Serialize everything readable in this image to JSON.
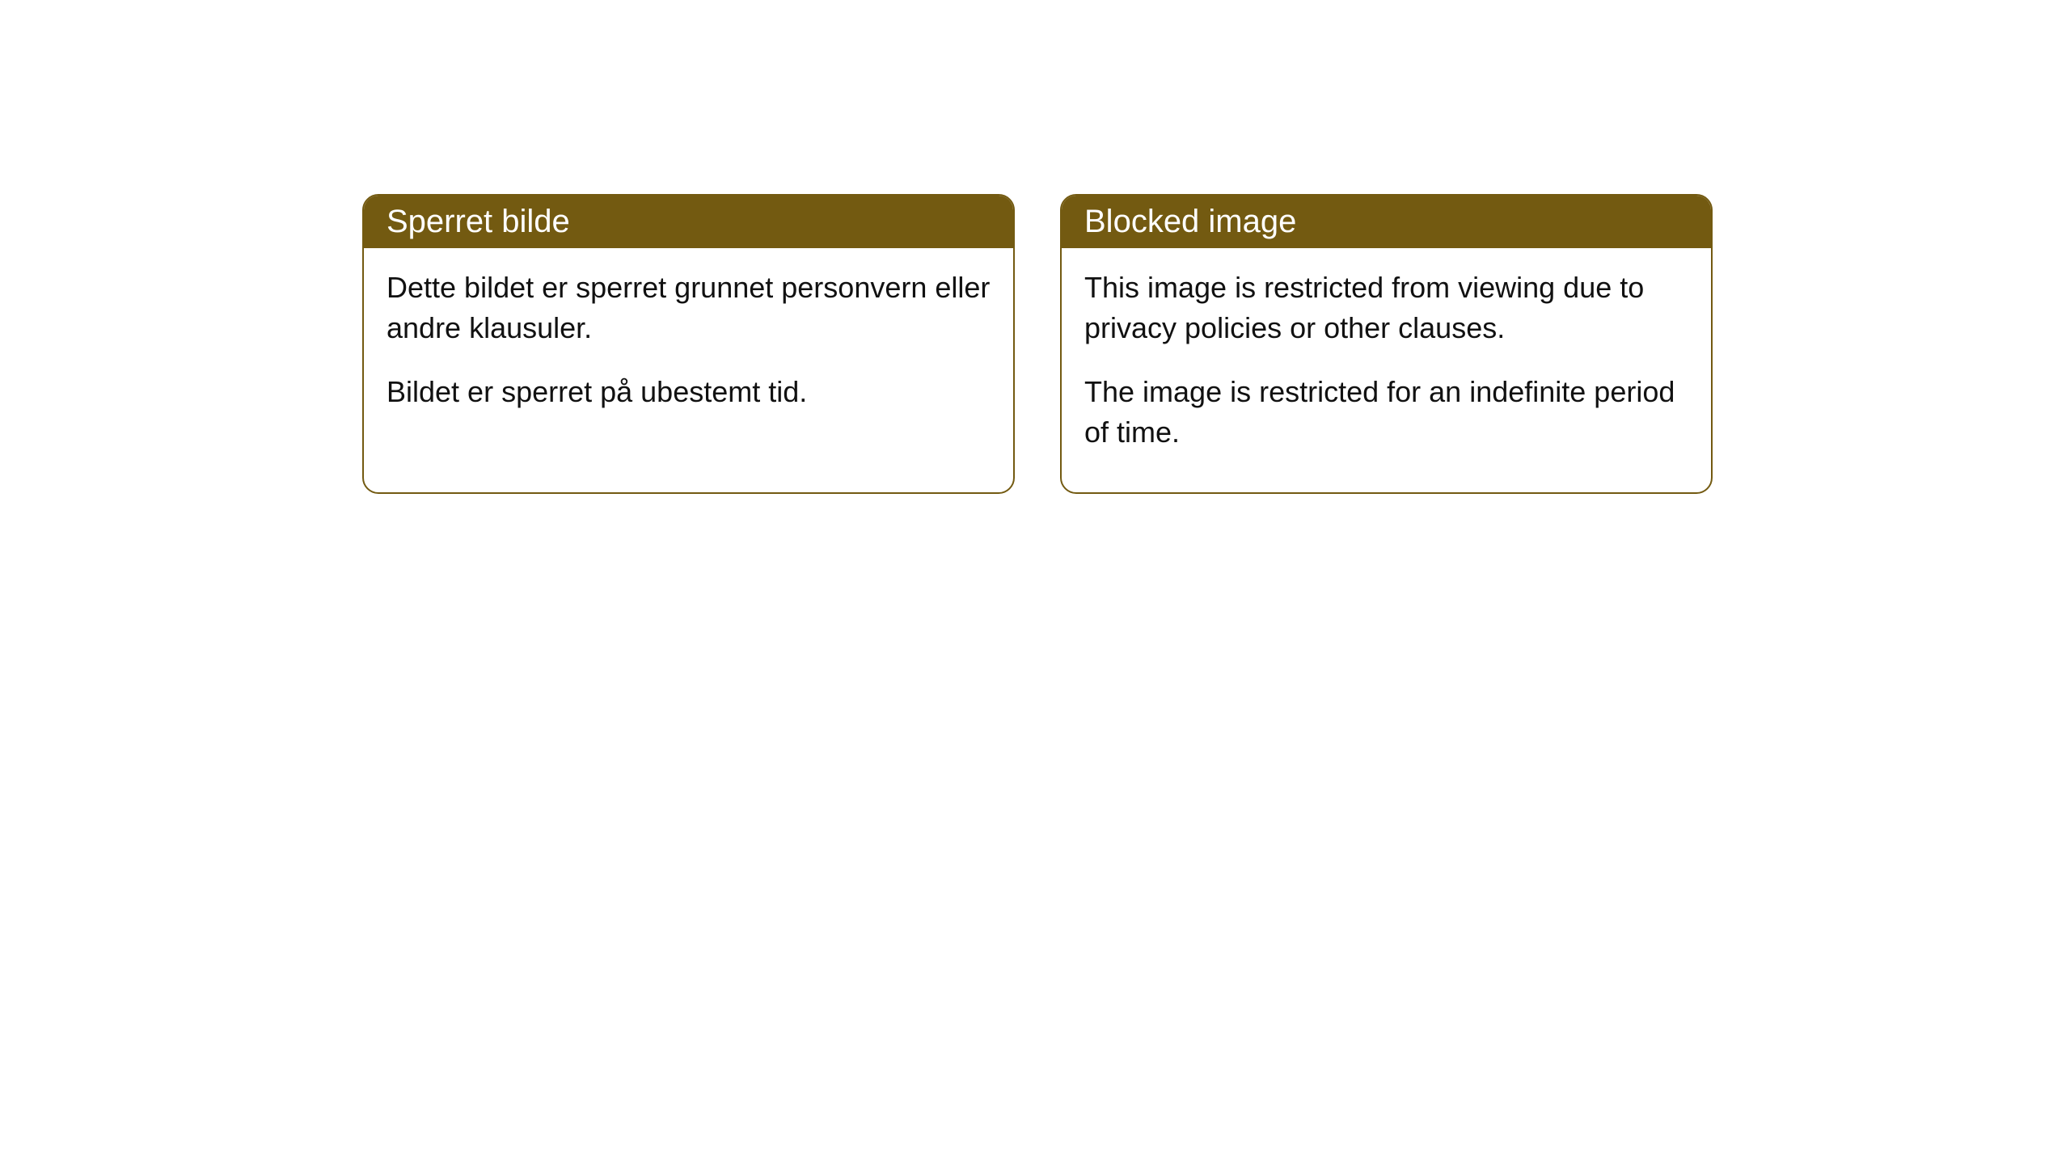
{
  "cards": [
    {
      "title": "Sperret bilde",
      "paragraph1": "Dette bildet er sperret grunnet personvern eller andre klausuler.",
      "paragraph2": "Bildet er sperret på ubestemt tid."
    },
    {
      "title": "Blocked image",
      "paragraph1": "This image is restricted from viewing due to privacy policies or other clauses.",
      "paragraph2": "The image is restricted for an indefinite period of time."
    }
  ],
  "styling": {
    "header_background_color": "#735a11",
    "header_text_color": "#ffffff",
    "border_color": "#735a11",
    "body_background_color": "#ffffff",
    "body_text_color": "#111111",
    "border_radius": 20,
    "header_font_size": 40,
    "body_font_size": 36
  }
}
